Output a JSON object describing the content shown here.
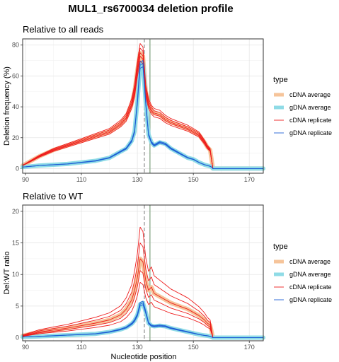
{
  "title": "MUL1_rs6700034 deletion profile",
  "xlabel": "Nucleotide position",
  "colors": {
    "cdna_avg": "#f6c49a",
    "gdna_avg": "#8fdbe6",
    "cdna_rep": "#ee1c1c",
    "gdna_rep": "#1f5fd6",
    "cut_line": "#9a9a9a",
    "pam_line": "#8fae8f",
    "panel_bg": "#ffffff",
    "grid": "#e6e6e6"
  },
  "legend": {
    "title": "type",
    "items": [
      {
        "label": "cDNA average",
        "kind": "cdna_avg"
      },
      {
        "label": "gDNA average",
        "kind": "gdna_avg"
      },
      {
        "label": "cDNA replicate",
        "kind": "cdna_rep"
      },
      {
        "label": "gDNA replicate",
        "kind": "gdna_rep"
      }
    ]
  },
  "chart_data": [
    {
      "type": "line",
      "subtitle": "Relative to all reads",
      "ylabel": "Deletion frequency (%)",
      "xlim": [
        89,
        175
      ],
      "ylim": [
        -3,
        84
      ],
      "xticks": [
        90,
        110,
        130,
        150,
        170
      ],
      "yticks": [
        0,
        20,
        40,
        60,
        80
      ],
      "cut_x": 132.5,
      "pam_x": 134.5,
      "x": [
        89,
        92,
        95,
        100,
        105,
        110,
        115,
        120,
        124,
        126,
        128,
        129,
        130,
        131,
        132,
        133,
        134,
        135,
        136,
        138,
        140,
        142,
        145,
        148,
        150,
        152,
        154,
        155,
        156,
        156.5,
        157,
        160,
        165,
        170,
        175
      ],
      "cdna_avg": [
        2,
        5,
        8,
        12,
        15,
        18,
        21,
        24,
        29,
        33,
        42,
        50,
        64,
        75,
        73,
        50,
        42,
        38,
        36,
        35,
        32,
        30,
        28,
        26,
        24,
        22,
        17,
        14,
        12,
        6,
        0,
        0,
        0,
        0,
        0
      ],
      "gdna_avg": [
        1,
        1.5,
        2,
        2.5,
        3,
        4,
        5,
        7,
        11,
        13,
        18,
        24,
        43,
        67,
        68,
        42,
        22,
        17,
        15,
        17,
        16,
        13,
        10,
        7,
        6,
        4,
        2.5,
        2,
        1.5,
        1,
        0,
        0,
        0,
        0,
        0
      ],
      "cdna_scale": [
        1.08,
        1.04,
        1.0,
        0.97,
        0.93
      ],
      "gdna_scale": [
        1.03,
        1.0,
        0.97
      ]
    },
    {
      "type": "line",
      "subtitle": "Relative to WT",
      "ylabel": "Del:WT ratio",
      "xlim": [
        89,
        175
      ],
      "ylim": [
        -0.5,
        21
      ],
      "xticks": [
        90,
        110,
        130,
        150,
        170
      ],
      "yticks": [
        0,
        5,
        10,
        15,
        20
      ],
      "cut_x": 132.5,
      "pam_x": 134.5,
      "x": [
        89,
        92,
        95,
        100,
        105,
        110,
        115,
        120,
        124,
        126,
        128,
        129,
        130,
        131,
        132,
        133,
        134,
        135,
        136,
        138,
        140,
        142,
        145,
        148,
        150,
        152,
        154,
        155,
        156,
        156.5,
        157,
        160,
        165,
        170,
        175
      ],
      "cdna_avg": [
        0.3,
        0.6,
        0.9,
        1.2,
        1.5,
        1.9,
        2.3,
        2.8,
        3.6,
        4.5,
        6,
        7.5,
        9.5,
        12.5,
        12,
        9,
        7.5,
        8,
        7,
        6.5,
        6,
        5.5,
        5,
        4.5,
        4,
        3.5,
        2.8,
        2.3,
        2,
        1,
        0,
        0,
        0,
        0,
        0
      ],
      "gdna_avg": [
        0.1,
        0.15,
        0.2,
        0.3,
        0.4,
        0.5,
        0.6,
        0.9,
        1.3,
        1.6,
        2.2,
        2.7,
        3.6,
        5.3,
        5.5,
        4,
        2.3,
        1.9,
        1.8,
        1.9,
        1.8,
        1.5,
        1.2,
        0.9,
        0.7,
        0.5,
        0.35,
        0.3,
        0.2,
        0.1,
        0,
        0,
        0,
        0,
        0
      ],
      "cdna_scale": [
        1.4,
        1.2,
        1.0,
        0.85,
        0.7
      ],
      "gdna_scale": [
        1.05,
        1.0,
        0.95
      ]
    }
  ]
}
